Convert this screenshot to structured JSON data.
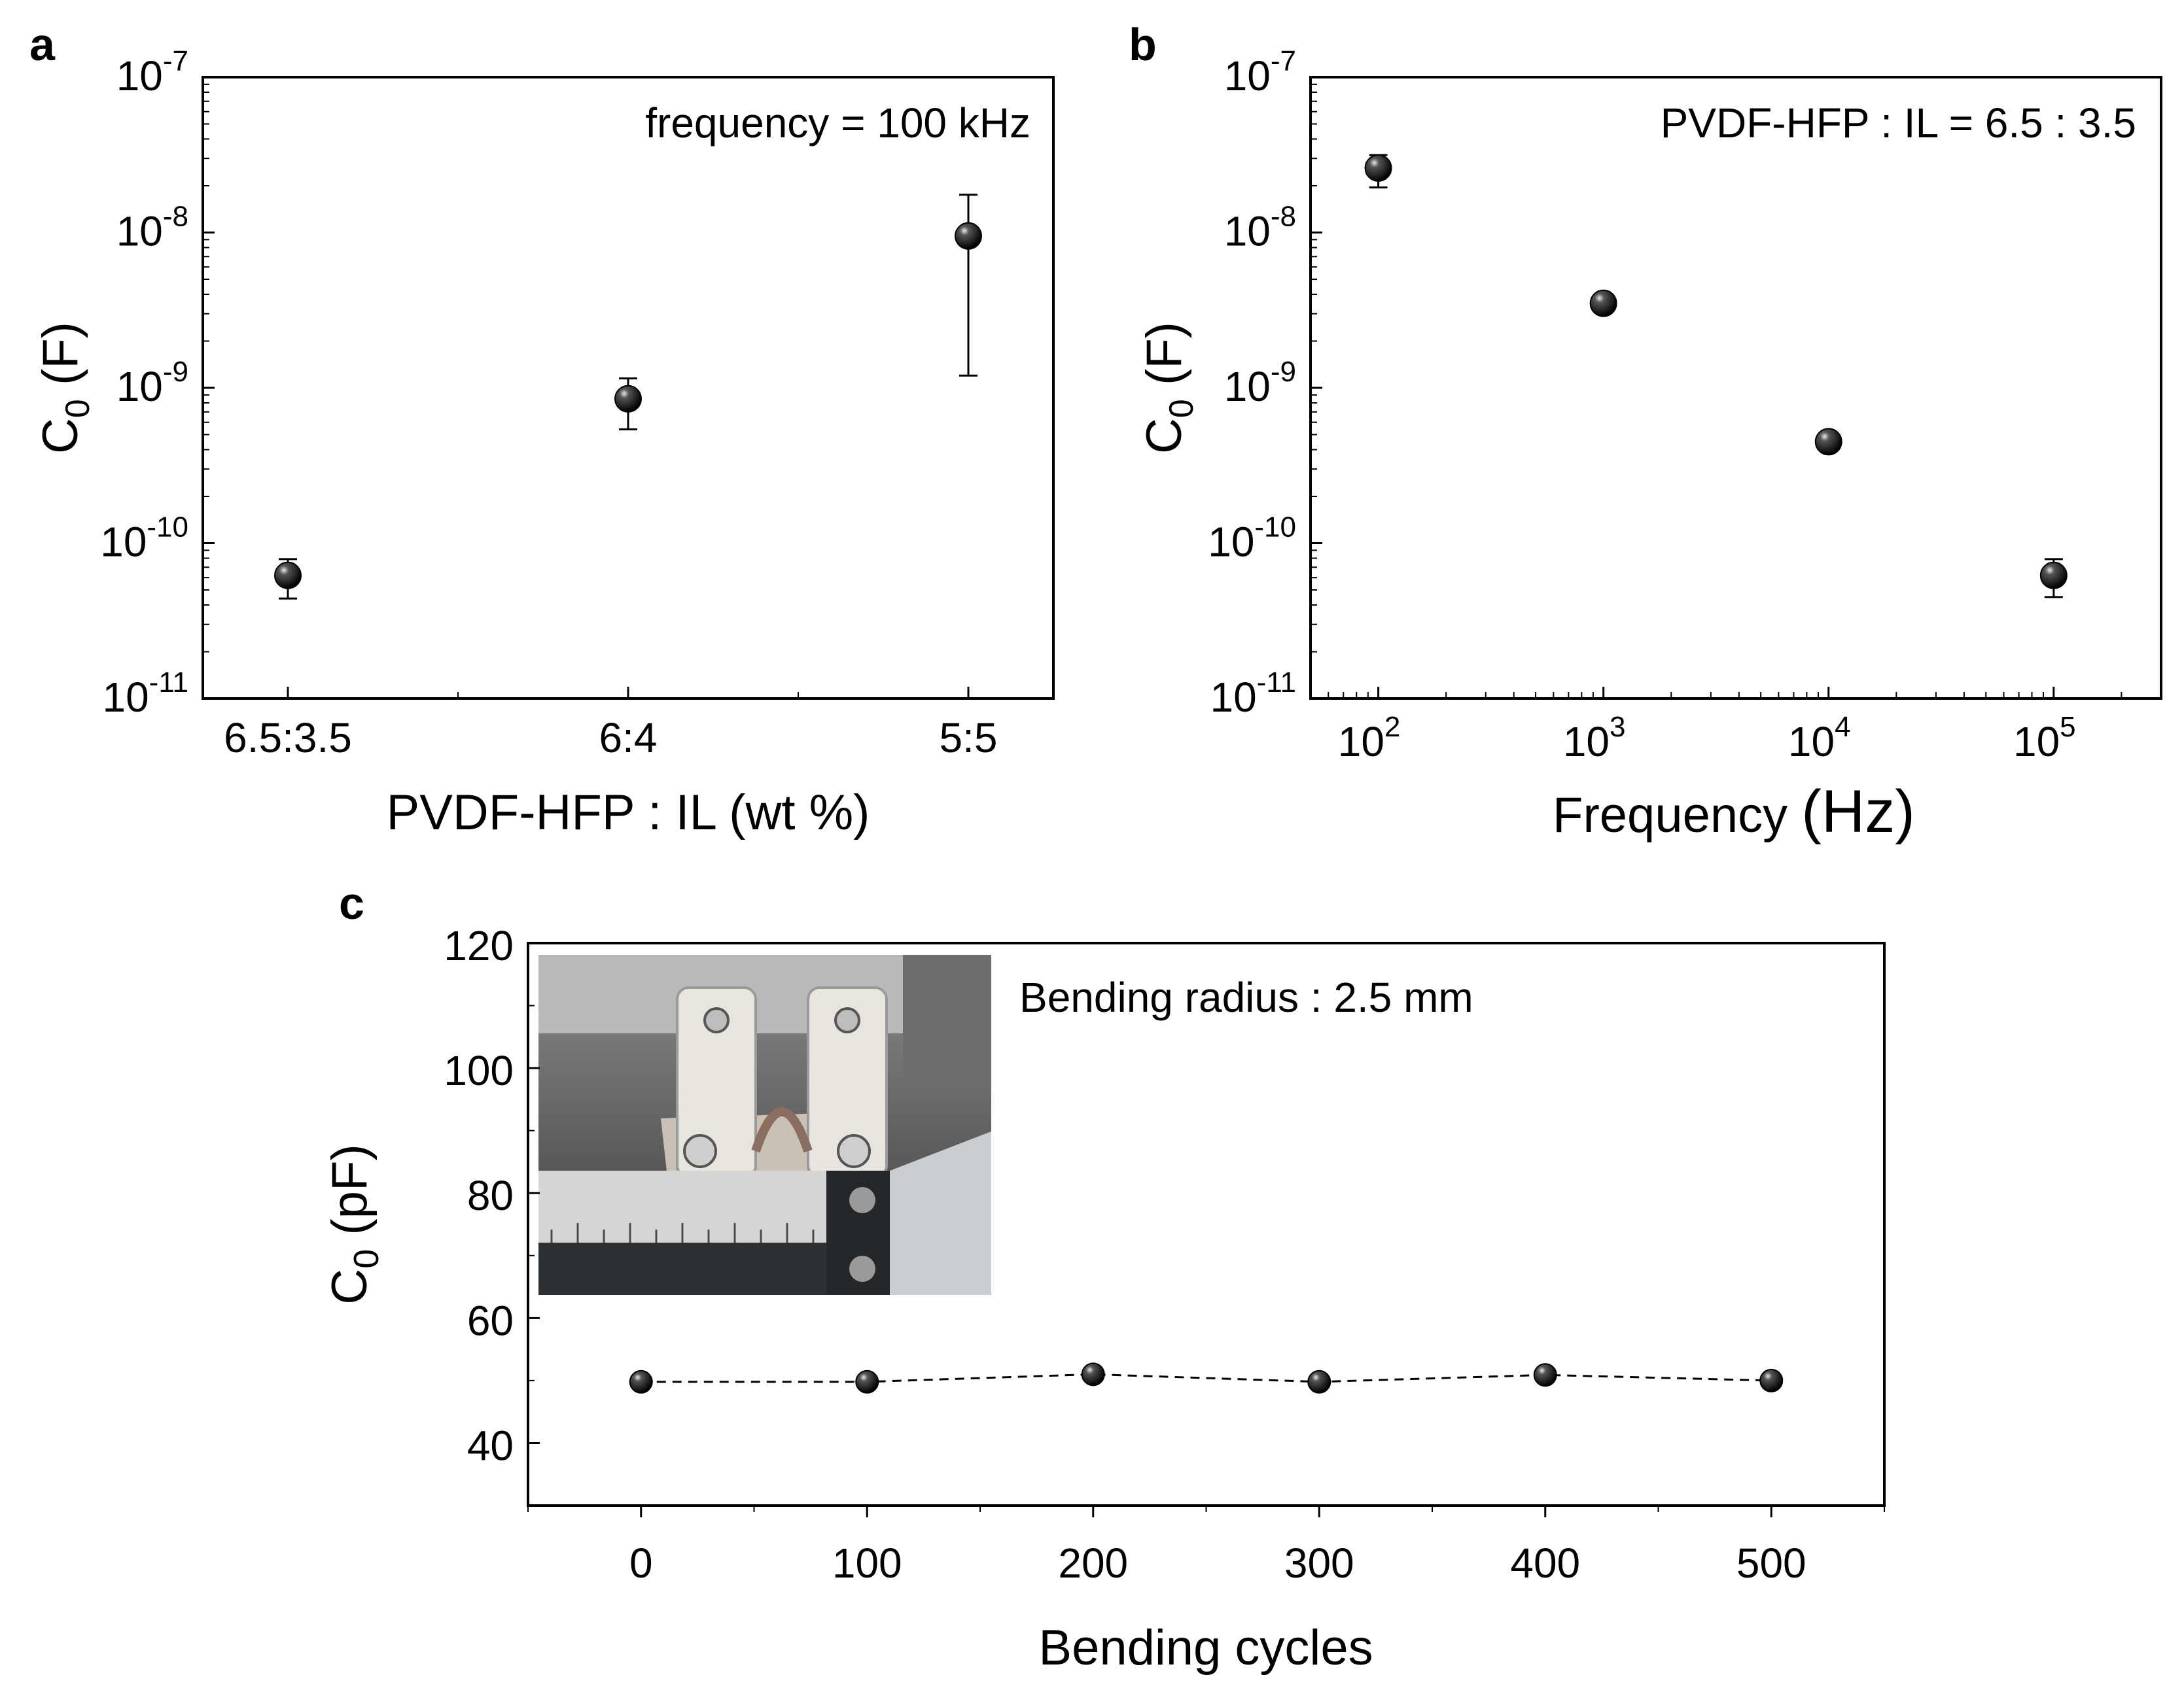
{
  "panels": [
    {
      "label": "a"
    },
    {
      "label": "b"
    },
    {
      "label": "c"
    }
  ],
  "chart_data": [
    {
      "type": "scatter",
      "panel": "a",
      "categories": [
        "6.5:3.5",
        "6:4",
        "5:5"
      ],
      "values": [
        6.2e-11,
        8.5e-10,
        9.5e-09
      ],
      "error_low": [
        4.4e-11,
        5.4e-10,
        1.2e-09
      ],
      "error_high": [
        7.9e-11,
        1.15e-09,
        1.75e-08
      ],
      "xlabel": "PVDF-HFP : IL (wt %)",
      "ylabel_main": "C",
      "ylabel_sub": "0",
      "ylabel_unit": " (F)",
      "yscale": "log",
      "ylim": [
        1e-11,
        1e-07
      ],
      "ytick_exponents": [
        "-11",
        "-10",
        "-9",
        "-8",
        "-7"
      ],
      "ytick_base": "10",
      "annotation": "frequency = 100 kHz",
      "marker_color": "#000000"
    },
    {
      "type": "scatter",
      "panel": "b",
      "x": [
        100,
        1000,
        10000,
        100000
      ],
      "values": [
        2.6e-08,
        3.5e-09,
        4.5e-10,
        6.2e-11
      ],
      "error_low": [
        1.95e-08,
        3.3e-09,
        4.3e-10,
        4.5e-11
      ],
      "error_high": [
        3.15e-08,
        3.75e-09,
        4.75e-10,
        7.9e-11
      ],
      "xlabel_main": "Frequency ",
      "xlabel_unit": "(Hz)",
      "xscale": "log",
      "xlim": [
        50,
        300000
      ],
      "xtick_exponents": [
        "2",
        "3",
        "4",
        "5"
      ],
      "ylabel_main": "C",
      "ylabel_sub": "0",
      "ylabel_unit": " (F)",
      "yscale": "log",
      "ylim": [
        1e-11,
        1e-07
      ],
      "ytick_exponents": [
        "-11",
        "-10",
        "-9",
        "-8",
        "-7"
      ],
      "ytick_base": "10",
      "annotation": "PVDF-HFP : IL = 6.5 : 3.5",
      "marker_color": "#000000"
    },
    {
      "type": "line",
      "panel": "c",
      "x": [
        0,
        100,
        200,
        300,
        400,
        500
      ],
      "values": [
        49.8,
        49.8,
        51.0,
        49.8,
        50.9,
        50.0
      ],
      "xlabel": "Bending cycles",
      "ylabel_main": "C",
      "ylabel_sub": "0",
      "ylabel_unit": " (pF)",
      "xlim": [
        -50,
        550
      ],
      "ylim": [
        30,
        120
      ],
      "xticks": [
        "0",
        "100",
        "200",
        "300",
        "400",
        "500"
      ],
      "yticks": [
        "40",
        "60",
        "80",
        "100",
        "120"
      ],
      "annotation": "Bending radius : 2.5 mm",
      "line_style": "dashed",
      "marker_color": "#000000"
    }
  ]
}
